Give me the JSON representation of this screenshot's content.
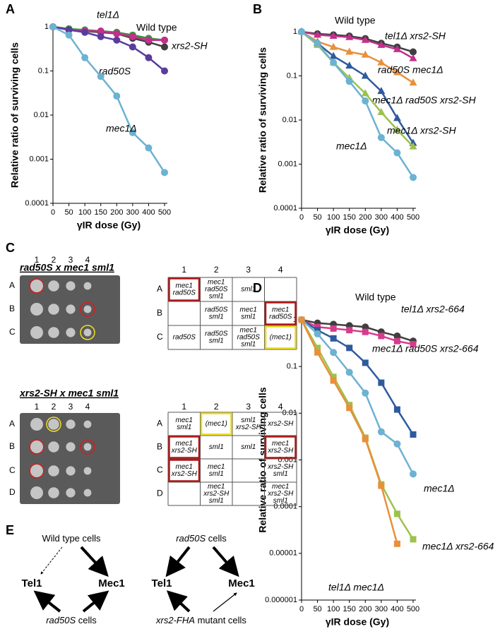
{
  "chart_data": [
    {
      "type": "line",
      "panel": "A",
      "y_label": "Relative ratio of surviving cells",
      "x_label": "γIR dose (Gy)",
      "log_y": true,
      "categories": [
        "0",
        "50",
        "100",
        "150",
        "200",
        "300",
        "400",
        "500"
      ],
      "ylim": [
        0.0001,
        1
      ],
      "yticks": [
        1,
        0.1,
        0.01,
        0.001,
        0.0001
      ],
      "series": [
        {
          "name": "Wild type",
          "italic": false,
          "color": "#3f3f3f",
          "marker": "circle",
          "values": [
            1,
            0.9,
            0.8,
            0.75,
            0.7,
            0.55,
            0.45,
            0.35
          ]
        },
        {
          "name": "tel1Δ",
          "italic": true,
          "color": "#3f8f3f",
          "marker": "circle",
          "values": [
            1,
            0.9,
            0.85,
            0.8,
            0.75,
            0.65,
            0.55,
            0.5
          ]
        },
        {
          "name": "xrs2-SH",
          "italic": true,
          "color": "#c2308c",
          "marker": "circle",
          "values": [
            1,
            0.85,
            0.8,
            0.8,
            0.7,
            0.6,
            0.5,
            0.5
          ]
        },
        {
          "name": "rad50S",
          "italic": true,
          "color": "#5a3c9e",
          "marker": "circle",
          "values": [
            1,
            0.85,
            0.75,
            0.6,
            0.5,
            0.35,
            0.2,
            0.1
          ]
        },
        {
          "name": "mec1Δ",
          "italic": true,
          "color": "#6cb2d2",
          "marker": "circle",
          "values": [
            1,
            0.65,
            0.2,
            0.075,
            0.027,
            0.004,
            0.0018,
            0.0005
          ]
        }
      ]
    },
    {
      "type": "line",
      "panel": "B",
      "y_label": "Relative ratio of surviving cells",
      "x_label": "γIR dose (Gy)",
      "log_y": true,
      "categories": [
        "0",
        "50",
        "100",
        "150",
        "200",
        "300",
        "400",
        "500"
      ],
      "ylim": [
        0.0001,
        1
      ],
      "yticks": [
        1,
        0.1,
        0.01,
        0.001,
        0.0001
      ],
      "series": [
        {
          "name": "Wild type",
          "italic": false,
          "color": "#3f3f3f",
          "marker": "circle",
          "values": [
            1,
            0.9,
            0.85,
            0.8,
            0.7,
            0.55,
            0.45,
            0.35
          ]
        },
        {
          "name": "tel1Δ xrs2-SH",
          "italic": true,
          "color": "#c2308c",
          "marker": "triangle",
          "values": [
            1,
            0.85,
            0.8,
            0.75,
            0.65,
            0.5,
            0.4,
            0.25
          ]
        },
        {
          "name": "rad50S mec1Δ",
          "italic": true,
          "color": "#e8903a",
          "marker": "triangle",
          "values": [
            1,
            0.6,
            0.45,
            0.35,
            0.3,
            0.2,
            0.12,
            0.07
          ]
        },
        {
          "name": "mec1Δ rad50S xrs2-SH",
          "italic": true,
          "color": "#2e5a9e",
          "marker": "triangle",
          "values": [
            1,
            0.55,
            0.28,
            0.17,
            0.1,
            0.045,
            0.011,
            0.003
          ]
        },
        {
          "name": "mec1Δ xrs2-SH",
          "italic": true,
          "color": "#9cc24c",
          "marker": "triangle",
          "values": [
            1,
            0.5,
            0.2,
            0.09,
            0.04,
            0.015,
            0.006,
            0.0025
          ]
        },
        {
          "name": "mec1Δ",
          "italic": true,
          "color": "#6cb2d2",
          "marker": "circle",
          "values": [
            1,
            0.55,
            0.2,
            0.075,
            0.027,
            0.004,
            0.0018,
            0.0005
          ]
        }
      ]
    },
    {
      "type": "line",
      "panel": "D",
      "y_label": "Relative ratio of surviving cells",
      "x_label": "γIR dose (Gy)",
      "log_y": true,
      "categories": [
        "0",
        "50",
        "100",
        "150",
        "200",
        "300",
        "400",
        "500"
      ],
      "ylim": [
        1e-06,
        1
      ],
      "yticks": [
        1,
        0.1,
        0.01,
        0.001,
        0.0001,
        1e-05,
        1e-06
      ],
      "series": [
        {
          "name": "Wild type",
          "italic": false,
          "color": "#3f3f3f",
          "marker": "circle",
          "values": [
            1,
            0.85,
            0.8,
            0.75,
            0.7,
            0.55,
            0.45,
            0.35
          ]
        },
        {
          "name": "tel1Δ xrs2-664",
          "italic": true,
          "color": "#d63c8c",
          "marker": "square",
          "values": [
            1,
            0.7,
            0.65,
            0.6,
            0.55,
            0.45,
            0.35,
            0.3
          ]
        },
        {
          "name": "mec1Δ rad50S xrs2-664",
          "italic": true,
          "color": "#2e5a9e",
          "marker": "square",
          "values": [
            1,
            0.6,
            0.4,
            0.25,
            0.12,
            0.045,
            0.012,
            0.0035
          ]
        },
        {
          "name": "mec1Δ",
          "italic": true,
          "color": "#6cb2d2",
          "marker": "circle",
          "values": [
            1,
            0.5,
            0.2,
            0.075,
            0.027,
            0.004,
            0.0022,
            0.0005
          ]
        },
        {
          "name": "mec1Δ xrs2-664",
          "italic": true,
          "color": "#9cc24c",
          "marker": "square",
          "values": [
            1,
            0.25,
            0.06,
            0.015,
            0.003,
            0.0003,
            7e-05,
            2e-05
          ]
        },
        {
          "name": "tel1Δ mec1Δ",
          "italic": true,
          "color": "#e8903a",
          "marker": "square",
          "values": [
            1,
            0.2,
            0.05,
            0.013,
            0.0028,
            0.00028,
            1.6e-05,
            null
          ]
        }
      ]
    }
  ],
  "panel_c": {
    "panel": "C",
    "gene_colors": {
      "mec1": "#2a8a2a",
      "(mec1)": "#2a8a2a",
      "sml1": "#b0309a"
    },
    "crosses": [
      {
        "title": "rad50S x mec1 sml1",
        "columns": [
          "1",
          "2",
          "3",
          "4"
        ],
        "rows": [
          "A",
          "B",
          "C"
        ],
        "table": [
          [
            {
              "lines": [
                "mec1",
                "rad50S"
              ],
              "box": "red"
            },
            {
              "lines": [
                "mec1",
                "rad50S",
                "sml1"
              ]
            },
            {
              "lines": [
                "sml1"
              ]
            },
            {
              "lines": []
            }
          ],
          [
            {
              "lines": []
            },
            {
              "lines": [
                "rad50S",
                "sml1"
              ]
            },
            {
              "lines": [
                "mec1",
                "sml1"
              ]
            },
            {
              "lines": [
                "mec1",
                "rad50S"
              ],
              "box": "red"
            }
          ],
          [
            {
              "lines": [
                "rad50S"
              ]
            },
            {
              "lines": [
                "rad50S",
                "sml1"
              ]
            },
            {
              "lines": [
                "mec1",
                "rad50S",
                "sml1"
              ]
            },
            {
              "lines": [
                "(mec1)"
              ],
              "box": "yellow"
            }
          ]
        ],
        "plate_marks": [
          {
            "row": 0,
            "col": 0,
            "color": "red"
          },
          {
            "row": 1,
            "col": 3,
            "color": "red"
          },
          {
            "row": 2,
            "col": 3,
            "color": "yellow"
          }
        ]
      },
      {
        "title": "xrs2-SH x mec1 sml1",
        "columns": [
          "1",
          "2",
          "3",
          "4"
        ],
        "rows": [
          "A",
          "B",
          "C",
          "D"
        ],
        "table": [
          [
            {
              "lines": [
                "mec1",
                "sml1"
              ]
            },
            {
              "lines": [
                "(mec1)"
              ],
              "box": "yellow"
            },
            {
              "lines": [
                "sml1",
                "xrs2-SH"
              ]
            },
            {
              "lines": [
                "xrs2-SH"
              ]
            }
          ],
          [
            {
              "lines": [
                "mec1",
                "xrs2-SH"
              ],
              "box": "red"
            },
            {
              "lines": [
                "sml1"
              ]
            },
            {
              "lines": [
                "sml1"
              ]
            },
            {
              "lines": [
                "mec1",
                "xrs2-SH"
              ],
              "box": "red"
            }
          ],
          [
            {
              "lines": [
                "mec1",
                "xrs2-SH"
              ],
              "box": "red"
            },
            {
              "lines": [
                "mec1",
                "sml1"
              ]
            },
            {
              "lines": []
            },
            {
              "lines": [
                "xrs2-SH",
                "sml1"
              ]
            }
          ],
          [
            {
              "lines": []
            },
            {
              "lines": [
                "mec1",
                "xrs2-SH",
                "sml1"
              ]
            },
            {
              "lines": []
            },
            {
              "lines": [
                "mec1",
                "xrs2-SH",
                "sml1"
              ]
            }
          ]
        ],
        "plate_marks": [
          {
            "row": 0,
            "col": 1,
            "color": "yellow"
          },
          {
            "row": 1,
            "col": 0,
            "color": "red"
          },
          {
            "row": 1,
            "col": 3,
            "color": "red"
          },
          {
            "row": 2,
            "col": 0,
            "color": "red"
          }
        ]
      }
    ]
  },
  "panel_e": {
    "panel": "E",
    "diagrams": [
      {
        "top": {
          "genotype": "Wild type cells"
        },
        "left": "Tel1",
        "right": "Mec1",
        "bottom": {
          "genotype": "rad50S",
          "suffix": "cells"
        }
      },
      {
        "top": {
          "genotype": "rad50S",
          "suffix": "cells"
        },
        "left": "Tel1",
        "right": "Mec1",
        "bottom": {
          "genotype": "xrs2-FHA",
          "suffix": "mutant cells"
        }
      }
    ]
  }
}
